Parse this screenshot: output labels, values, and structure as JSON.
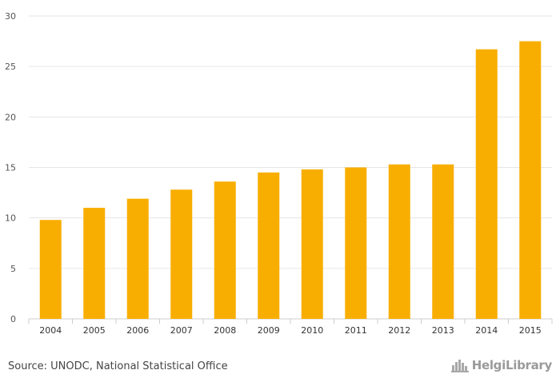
{
  "chart_data": {
    "type": "bar",
    "categories": [
      "2004",
      "2005",
      "2006",
      "2007",
      "2008",
      "2009",
      "2010",
      "2011",
      "2012",
      "2013",
      "2014",
      "2015"
    ],
    "values": [
      9.8,
      11.0,
      11.9,
      12.8,
      13.6,
      14.5,
      14.8,
      15.0,
      15.3,
      15.3,
      26.7,
      27.5
    ],
    "title": "",
    "xlabel": "",
    "ylabel": "",
    "ylim": [
      0,
      30
    ],
    "yticks": [
      0,
      5,
      10,
      15,
      20,
      25,
      30
    ],
    "grid": true,
    "bar_color": "#F8AE00",
    "grid_color": "#e6e6e6",
    "axis_color": "#cccccc"
  },
  "footer": {
    "source": "Source: UNODC, National Statistical Office",
    "brand": "HelgiLibrary"
  },
  "icons": {
    "brand_icon": "city-skyline-icon"
  }
}
